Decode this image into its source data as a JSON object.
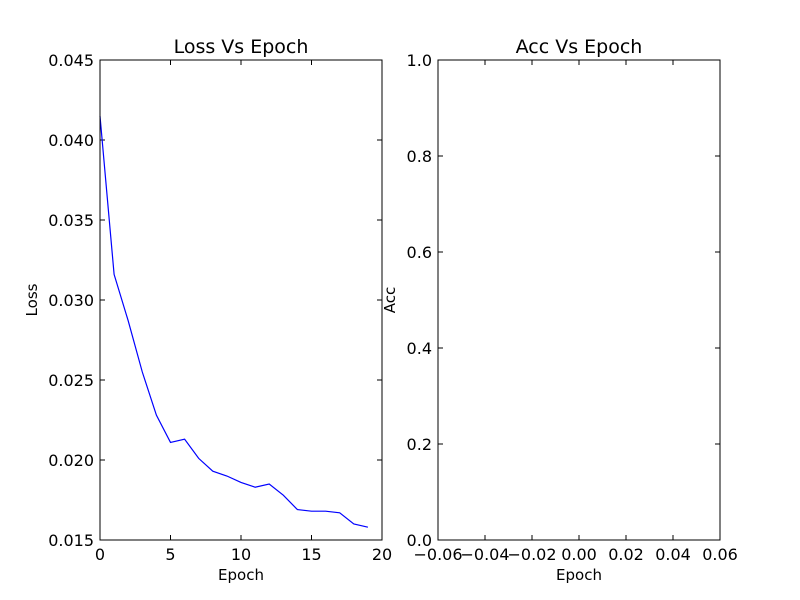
{
  "chart_data": [
    {
      "type": "line",
      "title": "Loss Vs Epoch",
      "xlabel": "Epoch",
      "ylabel": "Loss",
      "xlim": [
        0,
        20
      ],
      "ylim": [
        0.015,
        0.045
      ],
      "xticks": [
        "0",
        "5",
        "10",
        "15",
        "20"
      ],
      "yticks": [
        "0.015",
        "0.020",
        "0.025",
        "0.030",
        "0.035",
        "0.040",
        "0.045"
      ],
      "grid": false,
      "line_color": "#0000ff",
      "series": [
        {
          "x": [
            0,
            1,
            2,
            3,
            4,
            5,
            6,
            7,
            8,
            9,
            10,
            11,
            12,
            13,
            14,
            15,
            16,
            17,
            18,
            19
          ],
          "values": [
            0.0415,
            0.0316,
            0.0287,
            0.0255,
            0.0228,
            0.0211,
            0.0213,
            0.0201,
            0.0193,
            0.019,
            0.0186,
            0.0183,
            0.0185,
            0.0178,
            0.0169,
            0.0168,
            0.0168,
            0.0167,
            0.016,
            0.0158
          ]
        }
      ]
    },
    {
      "type": "line",
      "title": "Acc Vs Epoch",
      "xlabel": "Epoch",
      "ylabel": "Acc",
      "xlim": [
        -0.06,
        0.06
      ],
      "ylim": [
        0.0,
        1.0
      ],
      "xticks": [
        "−0.06",
        "−0.04",
        "−0.02",
        "0.00",
        "0.02",
        "0.04",
        "0.06"
      ],
      "yticks": [
        "0.0",
        "0.2",
        "0.4",
        "0.6",
        "0.8",
        "1.0"
      ],
      "grid": false,
      "series": []
    }
  ]
}
